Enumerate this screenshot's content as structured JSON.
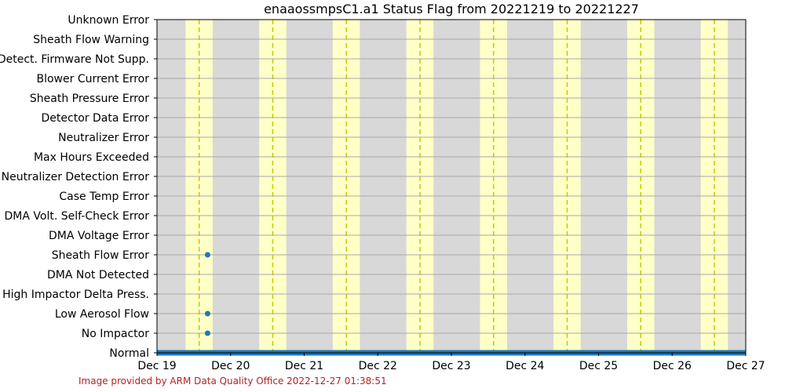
{
  "chart_data": {
    "type": "scatter",
    "title": "enaaossmpsC1.a1 Status Flag from 20221219 to 20221227",
    "xlabel": "",
    "ylabel": "",
    "x_range": [
      "2022-12-19T00:00",
      "2022-12-27T00:00"
    ],
    "x_ticks": [
      {
        "value": "2022-12-19",
        "label": "Dec 19"
      },
      {
        "value": "2022-12-20",
        "label": "Dec 20"
      },
      {
        "value": "2022-12-21",
        "label": "Dec 21"
      },
      {
        "value": "2022-12-22",
        "label": "Dec 22"
      },
      {
        "value": "2022-12-23",
        "label": "Dec 23"
      },
      {
        "value": "2022-12-24",
        "label": "Dec 24"
      },
      {
        "value": "2022-12-25",
        "label": "Dec 25"
      },
      {
        "value": "2022-12-26",
        "label": "Dec 26"
      },
      {
        "value": "2022-12-27",
        "label": "Dec 27"
      }
    ],
    "categories": [
      "Unknown Error",
      "Sheath Flow Warning",
      "Detect. Firmware Not Supp.",
      "Blower Current Error",
      "Sheath Pressure Error",
      "Detector Data Error",
      "Neutralizer Error",
      "Max Hours Exceeded",
      "Neutralizer Detection Error",
      "Case Temp Error",
      "DMA Volt. Self-Check Error",
      "DMA Voltage Error",
      "Sheath Flow Error",
      "DMA Not Detected",
      "High Impactor Delta Press.",
      "Low Aerosol Flow",
      "No Impactor",
      "Normal"
    ],
    "daylight_bands": [
      [
        "2022-12-19T09:20",
        "2022-12-19T18:10"
      ],
      [
        "2022-12-20T09:20",
        "2022-12-20T18:10"
      ],
      [
        "2022-12-21T09:20",
        "2022-12-21T18:10"
      ],
      [
        "2022-12-22T09:20",
        "2022-12-22T18:10"
      ],
      [
        "2022-12-23T09:20",
        "2022-12-23T18:10"
      ],
      [
        "2022-12-24T09:20",
        "2022-12-24T18:10"
      ],
      [
        "2022-12-25T09:20",
        "2022-12-25T18:10"
      ],
      [
        "2022-12-26T09:20",
        "2022-12-26T18:10"
      ]
    ],
    "solar_noon": [
      "2022-12-19T13:45",
      "2022-12-20T13:45",
      "2022-12-21T13:45",
      "2022-12-22T13:45",
      "2022-12-23T13:45",
      "2022-12-24T13:45",
      "2022-12-25T13:45",
      "2022-12-26T13:45"
    ],
    "points": [
      {
        "flag": "Sheath Flow Error",
        "time": "2022-12-19T16:30"
      },
      {
        "flag": "Low Aerosol Flow",
        "time": "2022-12-19T16:30"
      },
      {
        "flag": "No Impactor",
        "time": "2022-12-19T16:30"
      }
    ],
    "normal_span": [
      "2022-12-19T00:00",
      "2022-12-27T00:00"
    ],
    "grid": true,
    "colors": {
      "night": "#d8d8d8",
      "day": "#ffffc8",
      "noon_line": "#c8c800",
      "point": "#1f77b4",
      "grid": "#a9a9a9"
    }
  },
  "footer": {
    "credit": "Image provided by ARM Data Quality Office 2022-12-27 01:38:51"
  }
}
